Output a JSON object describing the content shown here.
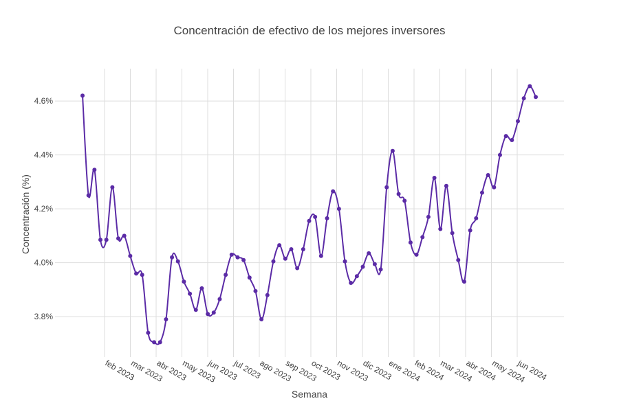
{
  "chart_data": {
    "type": "line",
    "title": "Concentración de efectivo de los mejores inversores",
    "xlabel": "Semana",
    "ylabel": "Concentración (%)",
    "y_ticks": [
      3.8,
      4.0,
      4.2,
      4.4,
      4.6
    ],
    "y_tick_labels": [
      "3.8%",
      "4.0%",
      "4.2%",
      "4.4%",
      "4.6%"
    ],
    "ylim": [
      3.65,
      4.72
    ],
    "x_tick_labels": [
      "feb 2023",
      "mar 2023",
      "abr 2023",
      "may 2023",
      "jun 2023",
      "jul 2023",
      "ago 2023",
      "sep 2023",
      "oct 2023",
      "nov 2023",
      "dic 2023",
      "ene 2024",
      "feb 2024",
      "mar 2024",
      "abr 2024",
      "may 2024",
      "jun 2024"
    ],
    "series": [
      {
        "name": "Concentración",
        "color": "#5b2ba6",
        "values": [
          4.62,
          4.25,
          4.345,
          4.085,
          4.085,
          4.28,
          4.09,
          4.1,
          4.025,
          3.96,
          3.955,
          3.74,
          3.705,
          3.705,
          3.79,
          4.02,
          4.005,
          3.93,
          3.885,
          3.825,
          3.905,
          3.81,
          3.815,
          3.865,
          3.955,
          4.03,
          4.02,
          4.01,
          3.945,
          3.895,
          3.79,
          3.88,
          4.005,
          4.065,
          4.015,
          4.05,
          3.98,
          4.05,
          4.155,
          4.17,
          4.025,
          4.165,
          4.265,
          4.2,
          4.005,
          3.925,
          3.95,
          3.985,
          4.035,
          3.995,
          3.975,
          4.28,
          4.415,
          4.255,
          4.23,
          4.075,
          4.03,
          4.095,
          4.17,
          4.315,
          4.125,
          4.285,
          4.11,
          4.01,
          3.93,
          4.12,
          4.165,
          4.26,
          4.325,
          4.28,
          4.4,
          4.47,
          4.455,
          4.525,
          4.61,
          4.655,
          4.615
        ]
      }
    ]
  }
}
